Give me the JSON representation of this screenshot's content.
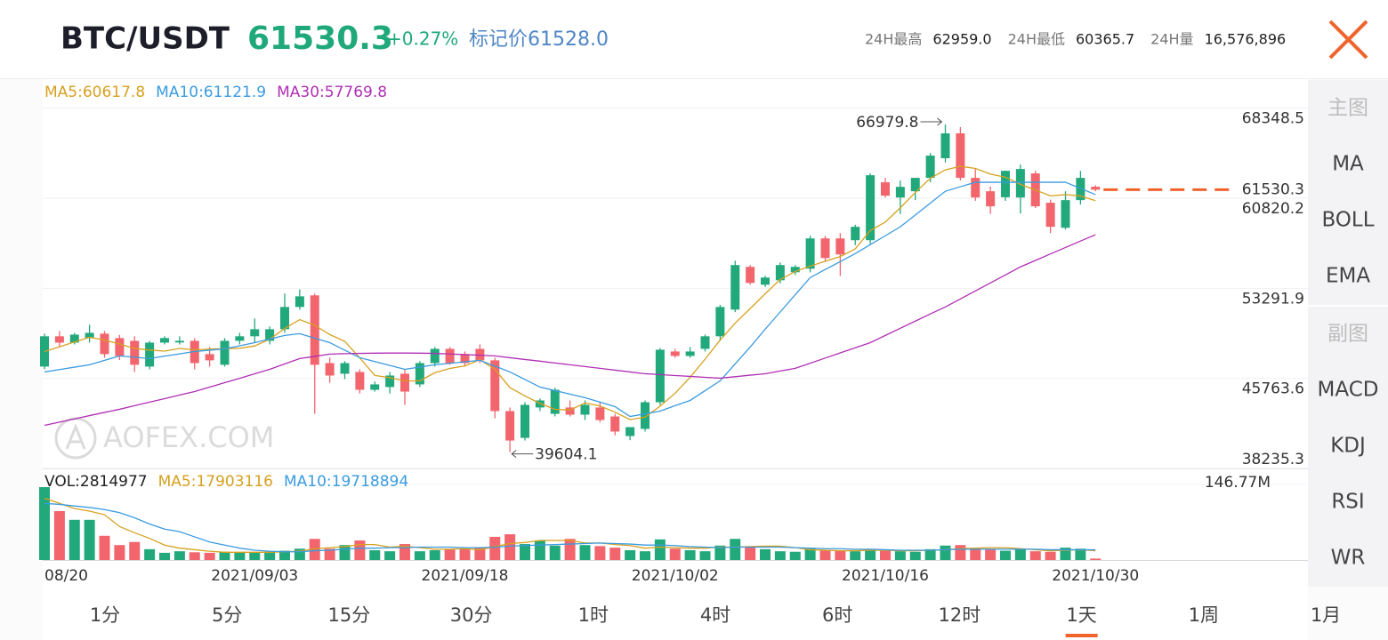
{
  "header": {
    "symbol": "BTC/USDT",
    "price": "61530.3",
    "change": "+0.27%",
    "mark_label": "标记价",
    "mark_price": "61528.0",
    "stats": [
      {
        "label": "24H最高",
        "value": "62959.0"
      },
      {
        "label": "24H最低",
        "value": "60365.7"
      },
      {
        "label": "24H量",
        "value": "16,576,896"
      }
    ]
  },
  "side_menu": {
    "groups": [
      {
        "heading": "主图",
        "items": [
          "MA",
          "BOLL",
          "EMA"
        ]
      },
      {
        "heading": "副图",
        "items": [
          "MACD",
          "KDJ",
          "RSI",
          "WR"
        ]
      }
    ],
    "active": "MA"
  },
  "timeframes": {
    "items": [
      "1分",
      "5分",
      "15分",
      "30分",
      "1时",
      "4时",
      "6时",
      "12时",
      "1天",
      "1周",
      "1月"
    ],
    "active": "1天"
  },
  "watermark": "AOFEX.COM",
  "chart_data": {
    "type": "candlestick",
    "categories": [
      "08/20",
      null,
      null,
      null,
      null,
      null,
      null,
      null,
      null,
      null,
      null,
      null,
      null,
      null,
      "2021/09/03",
      null,
      null,
      null,
      null,
      null,
      null,
      null,
      null,
      null,
      null,
      null,
      null,
      null,
      "2021/09/18",
      null,
      null,
      null,
      null,
      null,
      null,
      null,
      null,
      null,
      null,
      null,
      null,
      null,
      "2021/10/02",
      null,
      null,
      null,
      null,
      null,
      null,
      null,
      null,
      null,
      null,
      null,
      null,
      null,
      "2021/10/16",
      null,
      null,
      null,
      null,
      null,
      null,
      null,
      null,
      null,
      null,
      null,
      null,
      null,
      "2021/10/30"
    ],
    "ohlc": [
      [
        46750,
        49500,
        46520,
        49280
      ],
      [
        49280,
        49720,
        48380,
        48750
      ],
      [
        48750,
        49570,
        48600,
        49420
      ],
      [
        49130,
        50240,
        48750,
        49570
      ],
      [
        49500,
        49720,
        47490,
        47790
      ],
      [
        49130,
        49400,
        47300,
        47640
      ],
      [
        48900,
        49280,
        46300,
        46900
      ],
      [
        46750,
        48900,
        46520,
        48750
      ],
      [
        48750,
        49280,
        48600,
        49130
      ],
      [
        48760,
        49280,
        48600,
        48900
      ],
      [
        48900,
        49130,
        46520,
        47040
      ],
      [
        47790,
        48380,
        46750,
        47270
      ],
      [
        46900,
        49130,
        46750,
        48900
      ],
      [
        48900,
        49570,
        48600,
        49280
      ],
      [
        49280,
        50760,
        48750,
        49870
      ],
      [
        48900,
        50100,
        48600,
        49870
      ],
      [
        49870,
        52850,
        49570,
        51730
      ],
      [
        51730,
        53200,
        51500,
        52620
      ],
      [
        52700,
        52850,
        42800,
        46900
      ],
      [
        47040,
        47490,
        45400,
        46000
      ],
      [
        46150,
        47200,
        45700,
        47040
      ],
      [
        46300,
        46520,
        44500,
        44810
      ],
      [
        44810,
        45500,
        44660,
        45260
      ],
      [
        45040,
        46300,
        44500,
        46000
      ],
      [
        46150,
        46520,
        43550,
        44660
      ],
      [
        45260,
        47200,
        45040,
        47040
      ],
      [
        47040,
        48380,
        46750,
        48230
      ],
      [
        48230,
        48380,
        46900,
        47040
      ],
      [
        47790,
        48010,
        46750,
        47040
      ],
      [
        48230,
        48600,
        47040,
        47270
      ],
      [
        47270,
        47490,
        42430,
        43030
      ],
      [
        43030,
        43330,
        39604.1,
        40570
      ],
      [
        40790,
        43770,
        40570,
        43550
      ],
      [
        43330,
        44080,
        43030,
        43920
      ],
      [
        42800,
        44980,
        42580,
        44810
      ],
      [
        43330,
        43920,
        42580,
        42730
      ],
      [
        42730,
        43920,
        42280,
        43550
      ],
      [
        43330,
        43770,
        42100,
        42280
      ],
      [
        42580,
        42800,
        41000,
        41320
      ],
      [
        40940,
        41690,
        40600,
        41690
      ],
      [
        41540,
        43920,
        41320,
        43770
      ],
      [
        43770,
        48300,
        43550,
        48160
      ],
      [
        48010,
        48230,
        47490,
        47640
      ],
      [
        47640,
        48380,
        47490,
        48010
      ],
      [
        48230,
        49420,
        48000,
        49280
      ],
      [
        49280,
        51900,
        48900,
        51730
      ],
      [
        51510,
        55600,
        51300,
        55230
      ],
      [
        55080,
        55230,
        53600,
        53740
      ],
      [
        53590,
        54340,
        53400,
        54190
      ],
      [
        53960,
        55450,
        53700,
        55230
      ],
      [
        54630,
        55230,
        54400,
        55080
      ],
      [
        54930,
        57680,
        54630,
        57460
      ],
      [
        57460,
        57680,
        55500,
        55820
      ],
      [
        57460,
        57900,
        54330,
        56120
      ],
      [
        57310,
        58600,
        56900,
        58430
      ],
      [
        57310,
        62900,
        57000,
        62740
      ],
      [
        62150,
        62520,
        60880,
        61030
      ],
      [
        60880,
        62300,
        59500,
        61770
      ],
      [
        61400,
        62520,
        60660,
        62520
      ],
      [
        62520,
        64600,
        62150,
        64380
      ],
      [
        64160,
        66979.8,
        63800,
        66240
      ],
      [
        66240,
        66760,
        62300,
        62520
      ],
      [
        62520,
        63260,
        60600,
        60880
      ],
      [
        61400,
        61800,
        59500,
        60140
      ],
      [
        60900,
        63110,
        60600,
        63110
      ],
      [
        60880,
        63640,
        59540,
        63260
      ],
      [
        62890,
        63100,
        60000,
        60140
      ],
      [
        60440,
        60700,
        57900,
        58430
      ],
      [
        58350,
        61400,
        58200,
        60660
      ],
      [
        60660,
        63110,
        60290,
        62520
      ],
      [
        61780,
        61900,
        61400,
        61530.3
      ]
    ],
    "up_color": "#22a97b",
    "down_color": "#f2656d",
    "last_price_color": "#f0642c",
    "ylim": [
      38235.3,
      70550
    ],
    "yticks": [
      38235.3,
      45763.6,
      53291.9,
      60820.2,
      68348.5
    ],
    "grid": true,
    "series": [
      {
        "name": "MA5:60617.8",
        "color": "#d6a11f",
        "values": [
          48000,
          48400,
          48800,
          49200,
          48962,
          48634,
          48264,
          48130,
          48042,
          48264,
          48144,
          48218,
          48248,
          48278,
          48472,
          49038,
          49930,
          50674,
          50198,
          49424,
          48858,
          47474,
          46002,
          45822,
          45554,
          45554,
          46238,
          46594,
          46802,
          47324,
          46522,
          44990,
          44292,
          43668,
          43176,
          43116,
          43712,
          43458,
          42938,
          42314,
          42522,
          43444,
          44516,
          45854,
          47372,
          48964,
          50378,
          51598,
          52834,
          54024,
          54694,
          55140,
          55556,
          55942,
          56582,
          58114,
          58828,
          60018,
          61298,
          62488,
          63188,
          63486,
          63308,
          62832,
          62578,
          61982,
          61506,
          61016,
          61120,
          61002,
          60617.8
        ]
      },
      {
        "name": "MA10:61121.9",
        "color": "#3a9be0",
        "values": [
          46300,
          46500,
          46700,
          46900,
          47270,
          47640,
          47530,
          47420,
          47620,
          47810,
          48010,
          48120,
          48230,
          48490,
          48750,
          49050,
          49350,
          49500,
          49130,
          48750,
          48120,
          47490,
          47170,
          46840,
          46520,
          46710,
          46900,
          47020,
          47150,
          47270,
          46790,
          46300,
          45670,
          45040,
          44740,
          44450,
          44150,
          43780,
          43400,
          42580,
          42800,
          43030,
          43480,
          43920,
          44740,
          45560,
          46970,
          48380,
          49870,
          51310,
          52750,
          54190,
          54860,
          55520,
          56190,
          56940,
          57680,
          58430,
          59420,
          60410,
          61400,
          61780,
          62150,
          62150,
          62150,
          62150,
          62150,
          62150,
          62150,
          61640,
          61121.9
        ]
      },
      {
        "name": "MA30:57769.8",
        "color": "#b02fb4",
        "values": [
          41840,
          42110,
          42380,
          42650,
          42920,
          43180,
          43480,
          43780,
          44070,
          44370,
          44660,
          45030,
          45400,
          45770,
          46150,
          46520,
          46970,
          47420,
          47600,
          47790,
          47830,
          47850,
          47870,
          47880,
          47880,
          47870,
          47850,
          47800,
          47750,
          47700,
          47640,
          47490,
          47340,
          47200,
          47050,
          46900,
          46750,
          46600,
          46450,
          46300,
          46150,
          46080,
          46000,
          45930,
          45850,
          45780,
          45900,
          46030,
          46150,
          46380,
          46600,
          47030,
          47460,
          47890,
          48320,
          48750,
          49350,
          49950,
          50550,
          51150,
          51730,
          52400,
          53070,
          53740,
          54410,
          55080,
          55620,
          56160,
          56700,
          57240,
          57769.8
        ]
      }
    ],
    "volume": {
      "name": "VOL:2814977",
      "ylim": [
        0,
        146770000
      ],
      "yticks": [
        {
          "value": 146770000,
          "label": "146.77M"
        }
      ],
      "values": [
        141600000,
        95000000,
        78000000,
        78000000,
        47000000,
        29000000,
        35000000,
        21000000,
        14000000,
        17000000,
        15000000,
        14000000,
        16000000,
        15000000,
        14000000,
        16000000,
        18000000,
        22000000,
        41000000,
        22000000,
        29000000,
        38000000,
        19000000,
        17000000,
        31000000,
        17000000,
        19000000,
        20000000,
        21000000,
        24000000,
        45000000,
        50000000,
        31000000,
        38000000,
        28000000,
        41000000,
        29000000,
        27000000,
        24000000,
        19000000,
        17000000,
        40000000,
        22000000,
        19000000,
        17000000,
        28000000,
        41000000,
        26000000,
        21000000,
        17000000,
        16000000,
        22000000,
        19000000,
        18000000,
        17000000,
        21000000,
        18000000,
        17000000,
        16000000,
        21000000,
        28000000,
        29000000,
        22000000,
        21000000,
        18000000,
        20000000,
        17000000,
        16000000,
        24000000,
        22000000,
        2814977
      ],
      "series": [
        {
          "name": "MA5:17903116",
          "color": "#d6a11f",
          "values": [
            120000000,
            110000000,
            100000000,
            95000000,
            88000000,
            65000000,
            53000000,
            42000000,
            29000000,
            23000000,
            20000000,
            17000000,
            15000000,
            15000000,
            15000000,
            15000000,
            16000000,
            17000000,
            22000000,
            24000000,
            26000000,
            30000000,
            30000000,
            25000000,
            27000000,
            24000000,
            21000000,
            21000000,
            22000000,
            20000000,
            26000000,
            32000000,
            34000000,
            38000000,
            38000000,
            38000000,
            33000000,
            33000000,
            30000000,
            28000000,
            23000000,
            25000000,
            24000000,
            23000000,
            23000000,
            25000000,
            25000000,
            26000000,
            27000000,
            27000000,
            24000000,
            20000000,
            19000000,
            18000000,
            18000000,
            19000000,
            19000000,
            18000000,
            18000000,
            19000000,
            20000000,
            22000000,
            23000000,
            24000000,
            24000000,
            22000000,
            20000000,
            18000000,
            19000000,
            20000000,
            17903116
          ]
        },
        {
          "name": "MA10:19718894",
          "color": "#3a9be0",
          "values": [
            110000000,
            108000000,
            105000000,
            102000000,
            98000000,
            92000000,
            82000000,
            70000000,
            60000000,
            55000000,
            45000000,
            35000000,
            29000000,
            23000000,
            19000000,
            17000000,
            16000000,
            16000000,
            18000000,
            19000000,
            21000000,
            23000000,
            23000000,
            24000000,
            24000000,
            25000000,
            25000000,
            25000000,
            24000000,
            24000000,
            25000000,
            27000000,
            28000000,
            29000000,
            30000000,
            31000000,
            32000000,
            33000000,
            32000000,
            31000000,
            29000000,
            29000000,
            28000000,
            26000000,
            25000000,
            24000000,
            25000000,
            25000000,
            25000000,
            25000000,
            24000000,
            23000000,
            22000000,
            22000000,
            21000000,
            21000000,
            20000000,
            19000000,
            19000000,
            19000000,
            20000000,
            21000000,
            21000000,
            21000000,
            21000000,
            21000000,
            21000000,
            20000000,
            20000000,
            20000000,
            19718894
          ]
        }
      ]
    }
  }
}
